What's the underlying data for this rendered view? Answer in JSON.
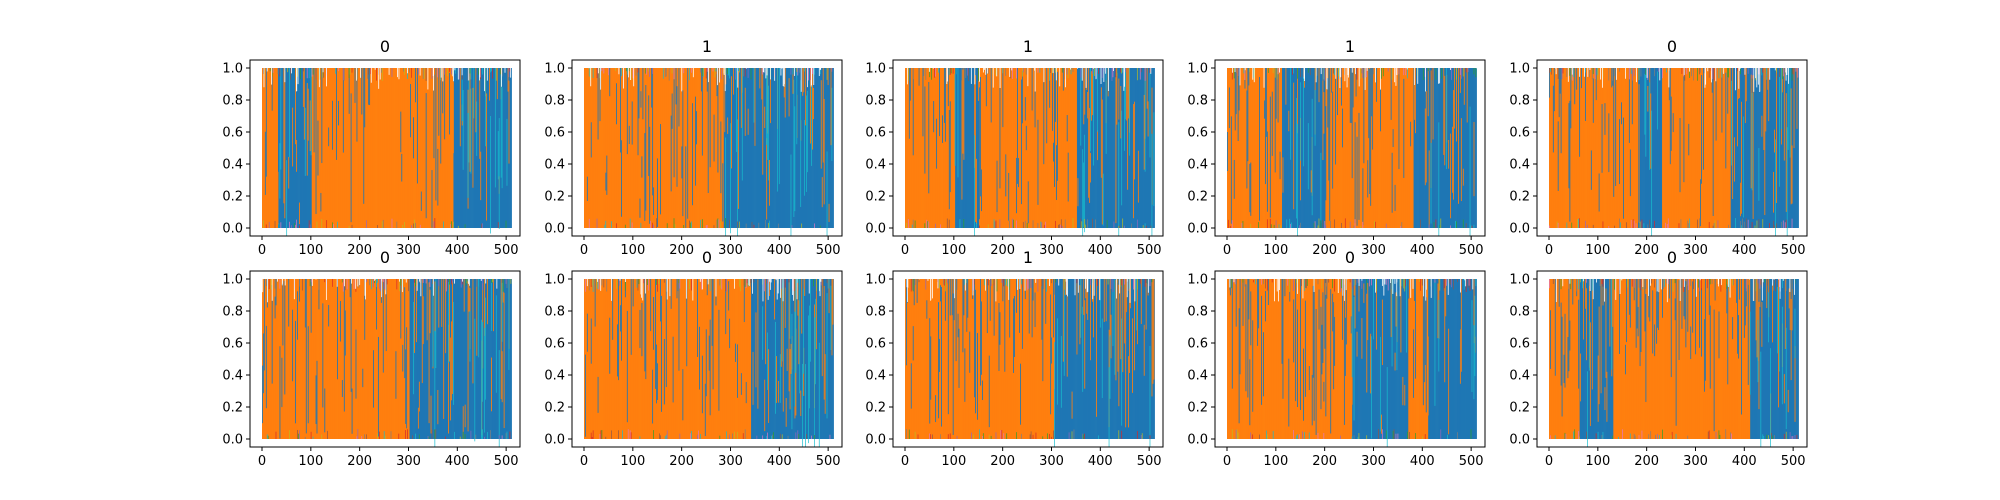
{
  "figure": {
    "ticks": {
      "y": [
        "0.0",
        "0.2",
        "0.4",
        "0.6",
        "0.8",
        "1.0"
      ],
      "x": [
        "0",
        "100",
        "200",
        "300",
        "400",
        "500"
      ]
    }
  },
  "chart_data": [
    {
      "type": "area",
      "title": "0",
      "xlim": [
        0,
        512
      ],
      "ylim": [
        0,
        1
      ],
      "grid": false,
      "x_range": [
        0,
        511
      ],
      "series": [
        {
          "color": "#1f77b4",
          "dominant_segments": [
            [
              30,
              100
            ],
            [
              390,
              511
            ]
          ]
        },
        {
          "color": "#ff7f0e",
          "dominant_segments": [
            [
              0,
              30
            ],
            [
              100,
              390
            ]
          ]
        },
        {
          "color": "#17becf",
          "note_only_color": true
        }
      ]
    },
    {
      "type": "area",
      "title": "1",
      "xlim": [
        0,
        512
      ],
      "ylim": [
        0,
        1
      ],
      "grid": false,
      "x_range": [
        0,
        511
      ],
      "series": [
        {
          "color": "#1f77b4",
          "dominant_segments": [
            [
              285,
              511
            ]
          ]
        },
        {
          "color": "#ff7f0e",
          "dominant_segments": [
            [
              0,
              285
            ]
          ]
        },
        {
          "color": "#17becf",
          "note_only_color": true
        }
      ]
    },
    {
      "type": "area",
      "title": "1",
      "xlim": [
        0,
        512
      ],
      "ylim": [
        0,
        1
      ],
      "grid": false,
      "x_range": [
        0,
        511
      ],
      "series": [
        {
          "color": "#1f77b4",
          "dominant_segments": [
            [
              100,
              150
            ],
            [
              350,
              511
            ]
          ]
        },
        {
          "color": "#ff7f0e",
          "dominant_segments": [
            [
              0,
              100
            ],
            [
              150,
              350
            ]
          ]
        },
        {
          "color": "#17becf",
          "note_only_color": true
        }
      ]
    },
    {
      "type": "area",
      "title": "1",
      "xlim": [
        0,
        512
      ],
      "ylim": [
        0,
        1
      ],
      "grid": false,
      "x_range": [
        0,
        511
      ],
      "series": [
        {
          "color": "#1f77b4",
          "dominant_segments": [
            [
              110,
              200
            ],
            [
              380,
              511
            ]
          ]
        },
        {
          "color": "#ff7f0e",
          "dominant_segments": [
            [
              0,
              110
            ],
            [
              200,
              380
            ]
          ]
        },
        {
          "color": "#17becf",
          "note_only_color": true
        }
      ]
    },
    {
      "type": "area",
      "title": "0",
      "xlim": [
        0,
        512
      ],
      "ylim": [
        0,
        1
      ],
      "grid": false,
      "x_range": [
        0,
        511
      ],
      "series": [
        {
          "color": "#1f77b4",
          "dominant_segments": [
            [
              180,
              230
            ],
            [
              370,
              511
            ]
          ]
        },
        {
          "color": "#ff7f0e",
          "dominant_segments": [
            [
              0,
              180
            ],
            [
              230,
              370
            ]
          ]
        },
        {
          "color": "#17becf",
          "note_only_color": true
        }
      ]
    },
    {
      "type": "area",
      "title": "0",
      "xlim": [
        0,
        512
      ],
      "ylim": [
        0,
        1
      ],
      "grid": false,
      "x_range": [
        0,
        511
      ],
      "series": [
        {
          "color": "#1f77b4",
          "dominant_segments": [
            [
              300,
              511
            ]
          ]
        },
        {
          "color": "#ff7f0e",
          "dominant_segments": [
            [
              0,
              300
            ]
          ]
        },
        {
          "color": "#17becf",
          "note_only_color": true
        }
      ]
    },
    {
      "type": "area",
      "title": "0",
      "xlim": [
        0,
        512
      ],
      "ylim": [
        0,
        1
      ],
      "grid": false,
      "x_range": [
        0,
        511
      ],
      "series": [
        {
          "color": "#1f77b4",
          "dominant_segments": [
            [
              340,
              511
            ]
          ]
        },
        {
          "color": "#ff7f0e",
          "dominant_segments": [
            [
              0,
              340
            ]
          ]
        },
        {
          "color": "#17becf",
          "note_only_color": true
        }
      ]
    },
    {
      "type": "area",
      "title": "1",
      "xlim": [
        0,
        512
      ],
      "ylim": [
        0,
        1
      ],
      "grid": false,
      "x_range": [
        0,
        511
      ],
      "series": [
        {
          "color": "#1f77b4",
          "dominant_segments": [
            [
              305,
              511
            ]
          ]
        },
        {
          "color": "#ff7f0e",
          "dominant_segments": [
            [
              0,
              305
            ]
          ]
        },
        {
          "color": "#17becf",
          "note_only_color": true
        }
      ]
    },
    {
      "type": "area",
      "title": "0",
      "xlim": [
        0,
        512
      ],
      "ylim": [
        0,
        1
      ],
      "grid": false,
      "x_range": [
        0,
        511
      ],
      "series": [
        {
          "color": "#1f77b4",
          "dominant_segments": [
            [
              255,
              370
            ],
            [
              410,
              511
            ]
          ]
        },
        {
          "color": "#ff7f0e",
          "dominant_segments": [
            [
              0,
              255
            ],
            [
              370,
              410
            ]
          ]
        },
        {
          "color": "#17becf",
          "note_only_color": true
        }
      ]
    },
    {
      "type": "area",
      "title": "0",
      "xlim": [
        0,
        512
      ],
      "ylim": [
        0,
        1
      ],
      "grid": false,
      "x_range": [
        0,
        511
      ],
      "series": [
        {
          "color": "#1f77b4",
          "dominant_segments": [
            [
              60,
              130
            ],
            [
              410,
              511
            ]
          ]
        },
        {
          "color": "#ff7f0e",
          "dominant_segments": [
            [
              0,
              60
            ],
            [
              130,
              410
            ]
          ]
        },
        {
          "color": "#17becf",
          "note_only_color": true
        }
      ]
    }
  ]
}
